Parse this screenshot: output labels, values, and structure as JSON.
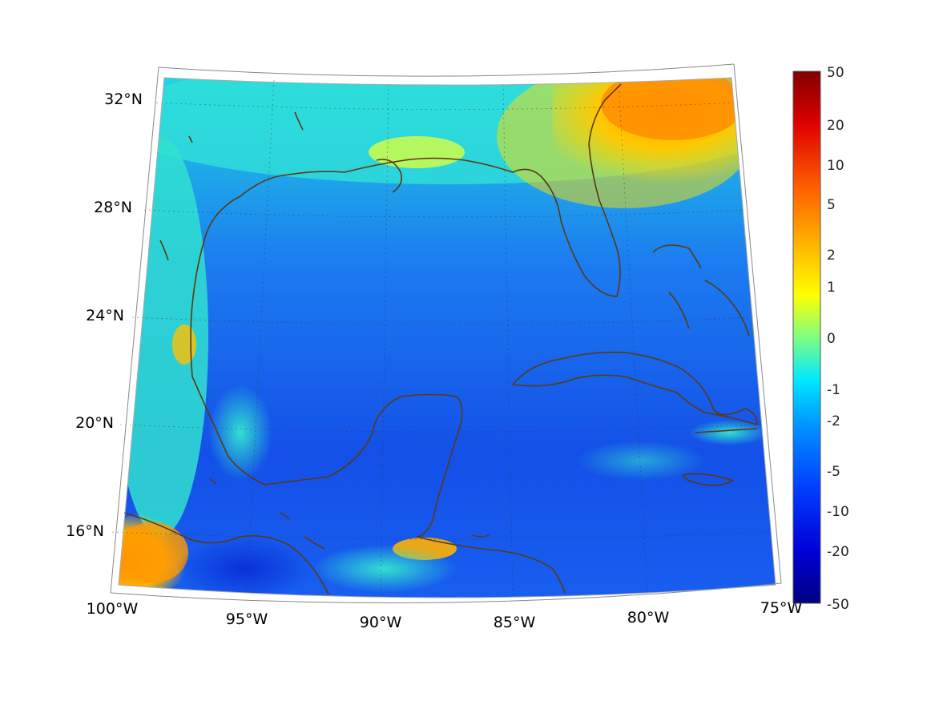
{
  "map": {
    "projection": "conic",
    "region": "Gulf of Mexico and Caribbean",
    "lon_ticks": [
      "100°W",
      "95°W",
      "90°W",
      "85°W",
      "80°W",
      "75°W"
    ],
    "lat_ticks": [
      "32°N",
      "28°N",
      "24°N",
      "20°N",
      "16°N"
    ],
    "coastline_color": "#5a3a10",
    "grid": "dotted"
  },
  "colorbar": {
    "colormap": "jet",
    "scale": "symmetric log",
    "labels": [
      "50",
      "20",
      "10",
      "5",
      "2",
      "1",
      "0",
      "-1",
      "-2",
      "-5",
      "-10",
      "-20",
      "-50"
    ],
    "range": [
      -50,
      50
    ]
  }
}
